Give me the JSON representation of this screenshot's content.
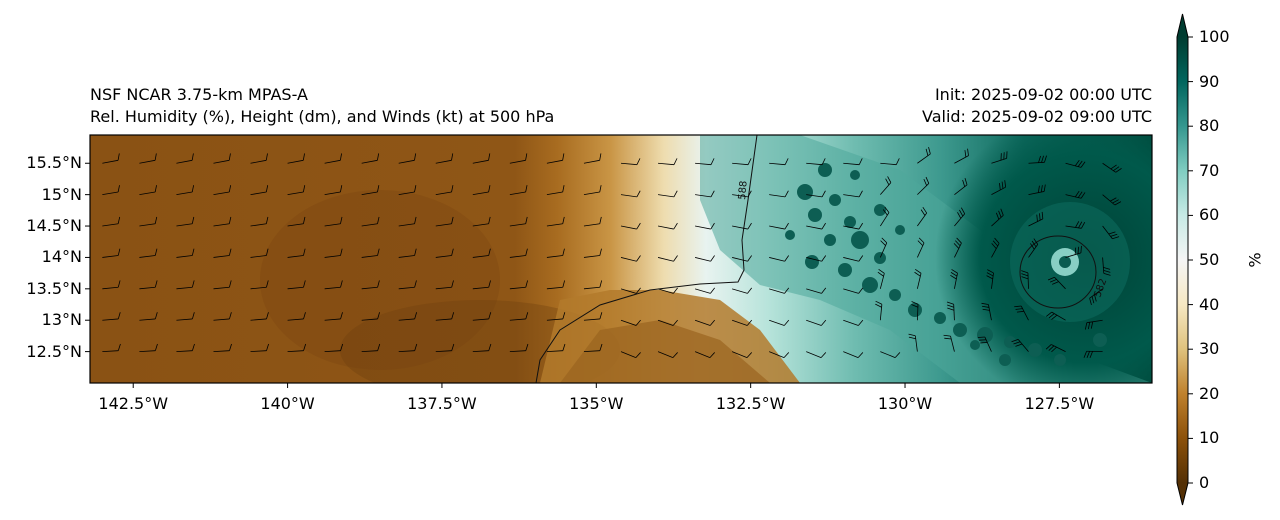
{
  "title": {
    "model": "NSF NCAR 3.75-km MPAS-A",
    "field": "Rel. Humidity (%), Height (dm), and Winds (kt) at 500 hPa",
    "init": "Init: 2025-09-02 00:00 UTC",
    "valid": "Valid: 2025-09-02 09:00 UTC"
  },
  "map": {
    "lon_range": [
      -143.2,
      -126.0
    ],
    "lat_range": [
      12.0,
      15.95
    ],
    "lon_ticks": [
      {
        "value": -142.5,
        "label": "142.5°W"
      },
      {
        "value": -140.0,
        "label": "140°W"
      },
      {
        "value": -137.5,
        "label": "137.5°W"
      },
      {
        "value": -135.0,
        "label": "135°W"
      },
      {
        "value": -132.5,
        "label": "132.5°W"
      },
      {
        "value": -130.0,
        "label": "130°W"
      },
      {
        "value": -127.5,
        "label": "127.5°W"
      }
    ],
    "lat_ticks": [
      {
        "value": 15.5,
        "label": "15.5°N"
      },
      {
        "value": 15.0,
        "label": "15°N"
      },
      {
        "value": 14.5,
        "label": "14.5°N"
      },
      {
        "value": 14.0,
        "label": "14°N"
      },
      {
        "value": 13.5,
        "label": "13.5°N"
      },
      {
        "value": 13.0,
        "label": "13°N"
      },
      {
        "value": 12.5,
        "label": "12.5°N"
      }
    ],
    "contours": [
      {
        "label": "588",
        "value": 588
      },
      {
        "label": "582",
        "value": 582
      }
    ],
    "cyclone_center": {
      "lon": -127.25,
      "lat": 13.8
    }
  },
  "colorbar": {
    "label": "%",
    "ticks": [
      "100",
      "90",
      "80",
      "70",
      "60",
      "50",
      "40",
      "30",
      "20",
      "10",
      "0"
    ],
    "colors": {
      "low": "#543005",
      "mid_low": "#bf812d",
      "mid": "#f5f5f5",
      "mid_high": "#35978f",
      "high": "#003c30"
    }
  }
}
